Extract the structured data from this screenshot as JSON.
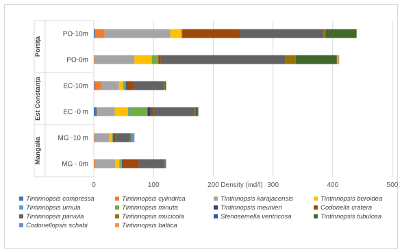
{
  "chart_data": {
    "type": "bar",
    "orientation": "horizontal",
    "stacked": true,
    "title": "",
    "xlabel": "Density (ind/l)",
    "ylabel": "",
    "xlim": [
      0,
      500
    ],
    "xticks": [
      "0",
      "100",
      "200",
      "300",
      "400",
      "500"
    ],
    "grid": true,
    "legend_position": "bottom",
    "groups": [
      {
        "name": "Portița",
        "categories": [
          "PO-10m",
          "PO-0m"
        ]
      },
      {
        "name": "Est Constanța",
        "categories": [
          "EC-10m",
          "EC -0 m"
        ]
      },
      {
        "name": "Mangalia",
        "categories": [
          "MG -10 m",
          "MG - 0m"
        ]
      }
    ],
    "categories": [
      "PO-10m",
      "PO-0m",
      "EC-10m",
      "EC -0 m",
      "MG -10 m",
      "MG - 0m"
    ],
    "series": [
      {
        "name": "Tintinnopsis compressa",
        "color": "#4472c4",
        "values": [
          2,
          0,
          1,
          5,
          0,
          0
        ]
      },
      {
        "name": "Tintinnopsis cylindrica",
        "color": "#ed7d31",
        "values": [
          16,
          1,
          11,
          1,
          1,
          2
        ]
      },
      {
        "name": "Tintinnopsis karajacensis",
        "color": "#a5a5a5",
        "values": [
          110,
          67,
          30,
          29,
          25,
          34
        ]
      },
      {
        "name": "Tintinnopsis beroidea",
        "color": "#ffc000",
        "values": [
          18,
          29,
          7,
          22,
          4,
          7
        ]
      },
      {
        "name": "Tintinnopsis urnula",
        "color": "#5b9bd5",
        "values": [
          1,
          0,
          2,
          1,
          1,
          1
        ]
      },
      {
        "name": "Tintinnopsis minuta",
        "color": "#70ad47",
        "values": [
          1,
          11,
          3,
          32,
          1,
          3
        ]
      },
      {
        "name": "Tintinnopsis meunieri",
        "color": "#264478",
        "values": [
          0,
          0,
          1,
          5,
          1,
          1
        ]
      },
      {
        "name": "Codonella cratera",
        "color": "#9e480e",
        "values": [
          97,
          4,
          11,
          5,
          3,
          27
        ]
      },
      {
        "name": "Tintinnopsis parvula",
        "color": "#636363",
        "values": [
          140,
          208,
          52,
          68,
          23,
          44
        ]
      },
      {
        "name": "Tintinnopsis mucicola",
        "color": "#997300",
        "values": [
          3,
          18,
          1,
          2,
          1,
          1
        ]
      },
      {
        "name": "Stenosemella ventricosa",
        "color": "#255e91",
        "values": [
          0,
          0,
          0,
          4,
          1,
          0
        ]
      },
      {
        "name": "Tintinnopsis tubulosa",
        "color": "#43682b",
        "values": [
          52,
          69,
          2,
          1,
          1,
          1
        ]
      },
      {
        "name": "Codonellopsis schabi",
        "color": "#698ed0",
        "values": [
          0,
          0,
          0,
          0,
          6,
          0
        ]
      },
      {
        "name": "Tintinnopsis baltica",
        "color": "#f1975a",
        "values": [
          0,
          4,
          0,
          0,
          0,
          0
        ]
      }
    ]
  }
}
